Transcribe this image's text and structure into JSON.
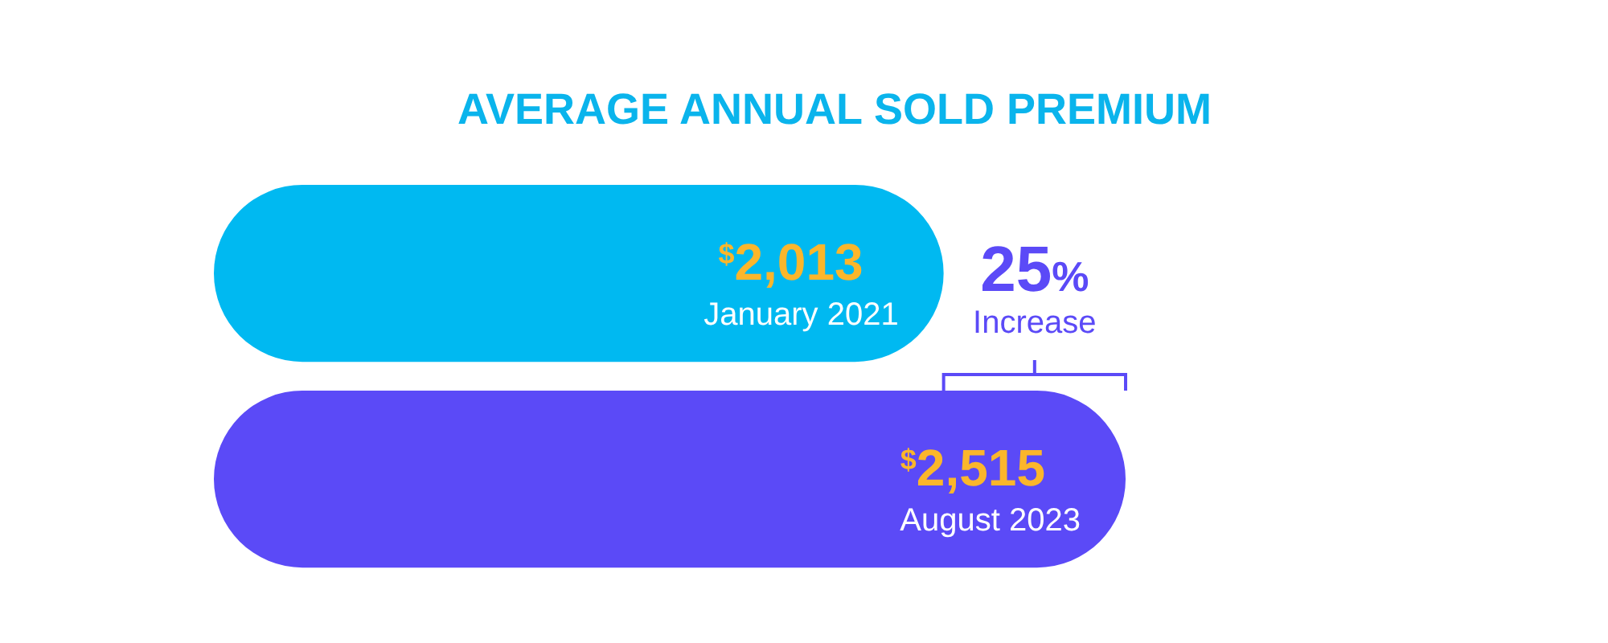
{
  "chart_data": {
    "type": "bar",
    "orientation": "horizontal",
    "title": "AVERAGE ANNUAL SOLD PREMIUM",
    "categories": [
      "January 2021",
      "August 2023"
    ],
    "values": [
      2013,
      2515
    ],
    "colors": [
      "#00b9f1",
      "#5b4af7"
    ],
    "value_labels": [
      "$^{$}$2,013",
      "$^{$}$2,515"
    ],
    "annotations": [
      "25% Increase"
    ]
  }
}
